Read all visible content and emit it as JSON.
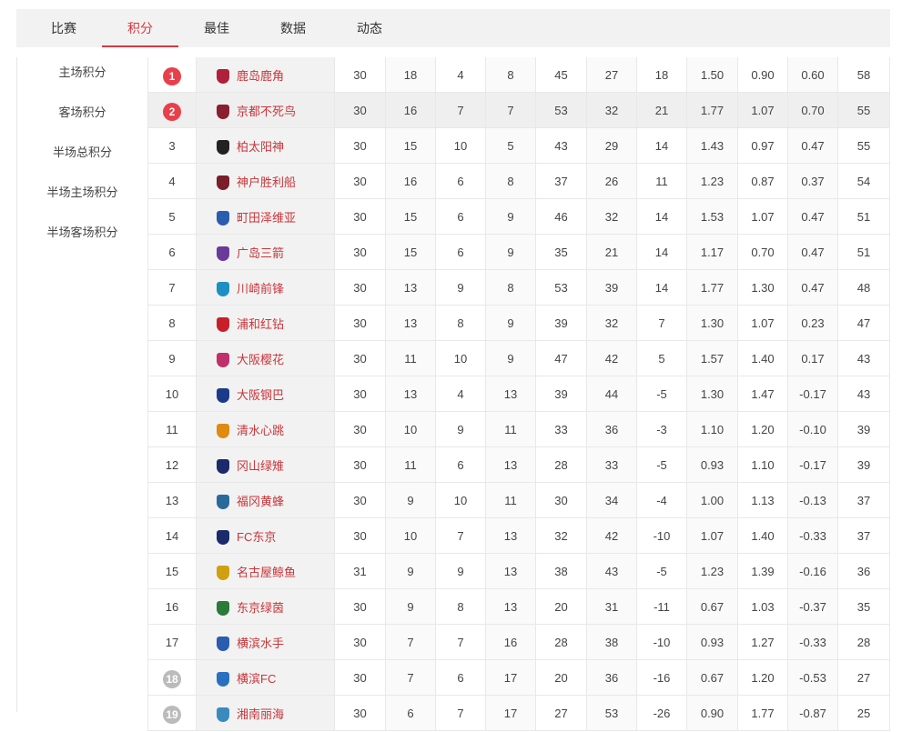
{
  "tabs": [
    "比赛",
    "积分",
    "最佳",
    "数据",
    "动态"
  ],
  "active_tab": 1,
  "sidebar": [
    "主场积分",
    "客场积分",
    "半场总积分",
    "半场主场积分",
    "半场客场积分"
  ],
  "highlighted_row": 1,
  "table": {
    "rows": [
      {
        "rank": "1",
        "badge": "#e8404b",
        "team": "鹿岛鹿角",
        "stats": [
          "30",
          "18",
          "4",
          "8",
          "45",
          "27",
          "18",
          "1.50",
          "0.90",
          "0.60",
          "58"
        ]
      },
      {
        "rank": "2",
        "badge": "#e8404b",
        "team": "京都不死鸟",
        "stats": [
          "30",
          "16",
          "7",
          "7",
          "53",
          "32",
          "21",
          "1.77",
          "1.07",
          "0.70",
          "55"
        ]
      },
      {
        "rank": "3",
        "team": "柏太阳神",
        "stats": [
          "30",
          "15",
          "10",
          "5",
          "43",
          "29",
          "14",
          "1.43",
          "0.97",
          "0.47",
          "55"
        ]
      },
      {
        "rank": "4",
        "team": "神户胜利船",
        "stats": [
          "30",
          "16",
          "6",
          "8",
          "37",
          "26",
          "11",
          "1.23",
          "0.87",
          "0.37",
          "54"
        ]
      },
      {
        "rank": "5",
        "team": "町田泽维亚",
        "stats": [
          "30",
          "15",
          "6",
          "9",
          "46",
          "32",
          "14",
          "1.53",
          "1.07",
          "0.47",
          "51"
        ]
      },
      {
        "rank": "6",
        "team": "广岛三箭",
        "stats": [
          "30",
          "15",
          "6",
          "9",
          "35",
          "21",
          "14",
          "1.17",
          "0.70",
          "0.47",
          "51"
        ]
      },
      {
        "rank": "7",
        "team": "川崎前锋",
        "stats": [
          "30",
          "13",
          "9",
          "8",
          "53",
          "39",
          "14",
          "1.77",
          "1.30",
          "0.47",
          "48"
        ]
      },
      {
        "rank": "8",
        "team": "浦和红钻",
        "stats": [
          "30",
          "13",
          "8",
          "9",
          "39",
          "32",
          "7",
          "1.30",
          "1.07",
          "0.23",
          "47"
        ]
      },
      {
        "rank": "9",
        "team": "大阪樱花",
        "stats": [
          "30",
          "11",
          "10",
          "9",
          "47",
          "42",
          "5",
          "1.57",
          "1.40",
          "0.17",
          "43"
        ]
      },
      {
        "rank": "10",
        "team": "大阪钢巴",
        "stats": [
          "30",
          "13",
          "4",
          "13",
          "39",
          "44",
          "-5",
          "1.30",
          "1.47",
          "-0.17",
          "43"
        ]
      },
      {
        "rank": "11",
        "team": "清水心跳",
        "stats": [
          "30",
          "10",
          "9",
          "11",
          "33",
          "36",
          "-3",
          "1.10",
          "1.20",
          "-0.10",
          "39"
        ]
      },
      {
        "rank": "12",
        "team": "冈山绿雉",
        "stats": [
          "30",
          "11",
          "6",
          "13",
          "28",
          "33",
          "-5",
          "0.93",
          "1.10",
          "-0.17",
          "39"
        ]
      },
      {
        "rank": "13",
        "team": "福冈黄蜂",
        "stats": [
          "30",
          "9",
          "10",
          "11",
          "30",
          "34",
          "-4",
          "1.00",
          "1.13",
          "-0.13",
          "37"
        ]
      },
      {
        "rank": "14",
        "team": "FC东京",
        "stats": [
          "30",
          "10",
          "7",
          "13",
          "32",
          "42",
          "-10",
          "1.07",
          "1.40",
          "-0.33",
          "37"
        ]
      },
      {
        "rank": "15",
        "team": "名古屋鲸鱼",
        "stats": [
          "31",
          "9",
          "9",
          "13",
          "38",
          "43",
          "-5",
          "1.23",
          "1.39",
          "-0.16",
          "36"
        ]
      },
      {
        "rank": "16",
        "team": "东京绿茵",
        "stats": [
          "30",
          "9",
          "8",
          "13",
          "20",
          "31",
          "-11",
          "0.67",
          "1.03",
          "-0.37",
          "35"
        ]
      },
      {
        "rank": "17",
        "team": "横滨水手",
        "stats": [
          "30",
          "7",
          "7",
          "16",
          "28",
          "38",
          "-10",
          "0.93",
          "1.27",
          "-0.33",
          "28"
        ]
      },
      {
        "rank": "18",
        "badge": "#bbbbbb",
        "team": "横滨FC",
        "stats": [
          "30",
          "7",
          "6",
          "17",
          "20",
          "36",
          "-16",
          "0.67",
          "1.20",
          "-0.53",
          "27"
        ]
      },
      {
        "rank": "19",
        "badge": "#bbbbbb",
        "team": "湘南丽海",
        "stats": [
          "30",
          "6",
          "7",
          "17",
          "27",
          "53",
          "-26",
          "0.90",
          "1.77",
          "-0.87",
          "25"
        ]
      }
    ]
  }
}
